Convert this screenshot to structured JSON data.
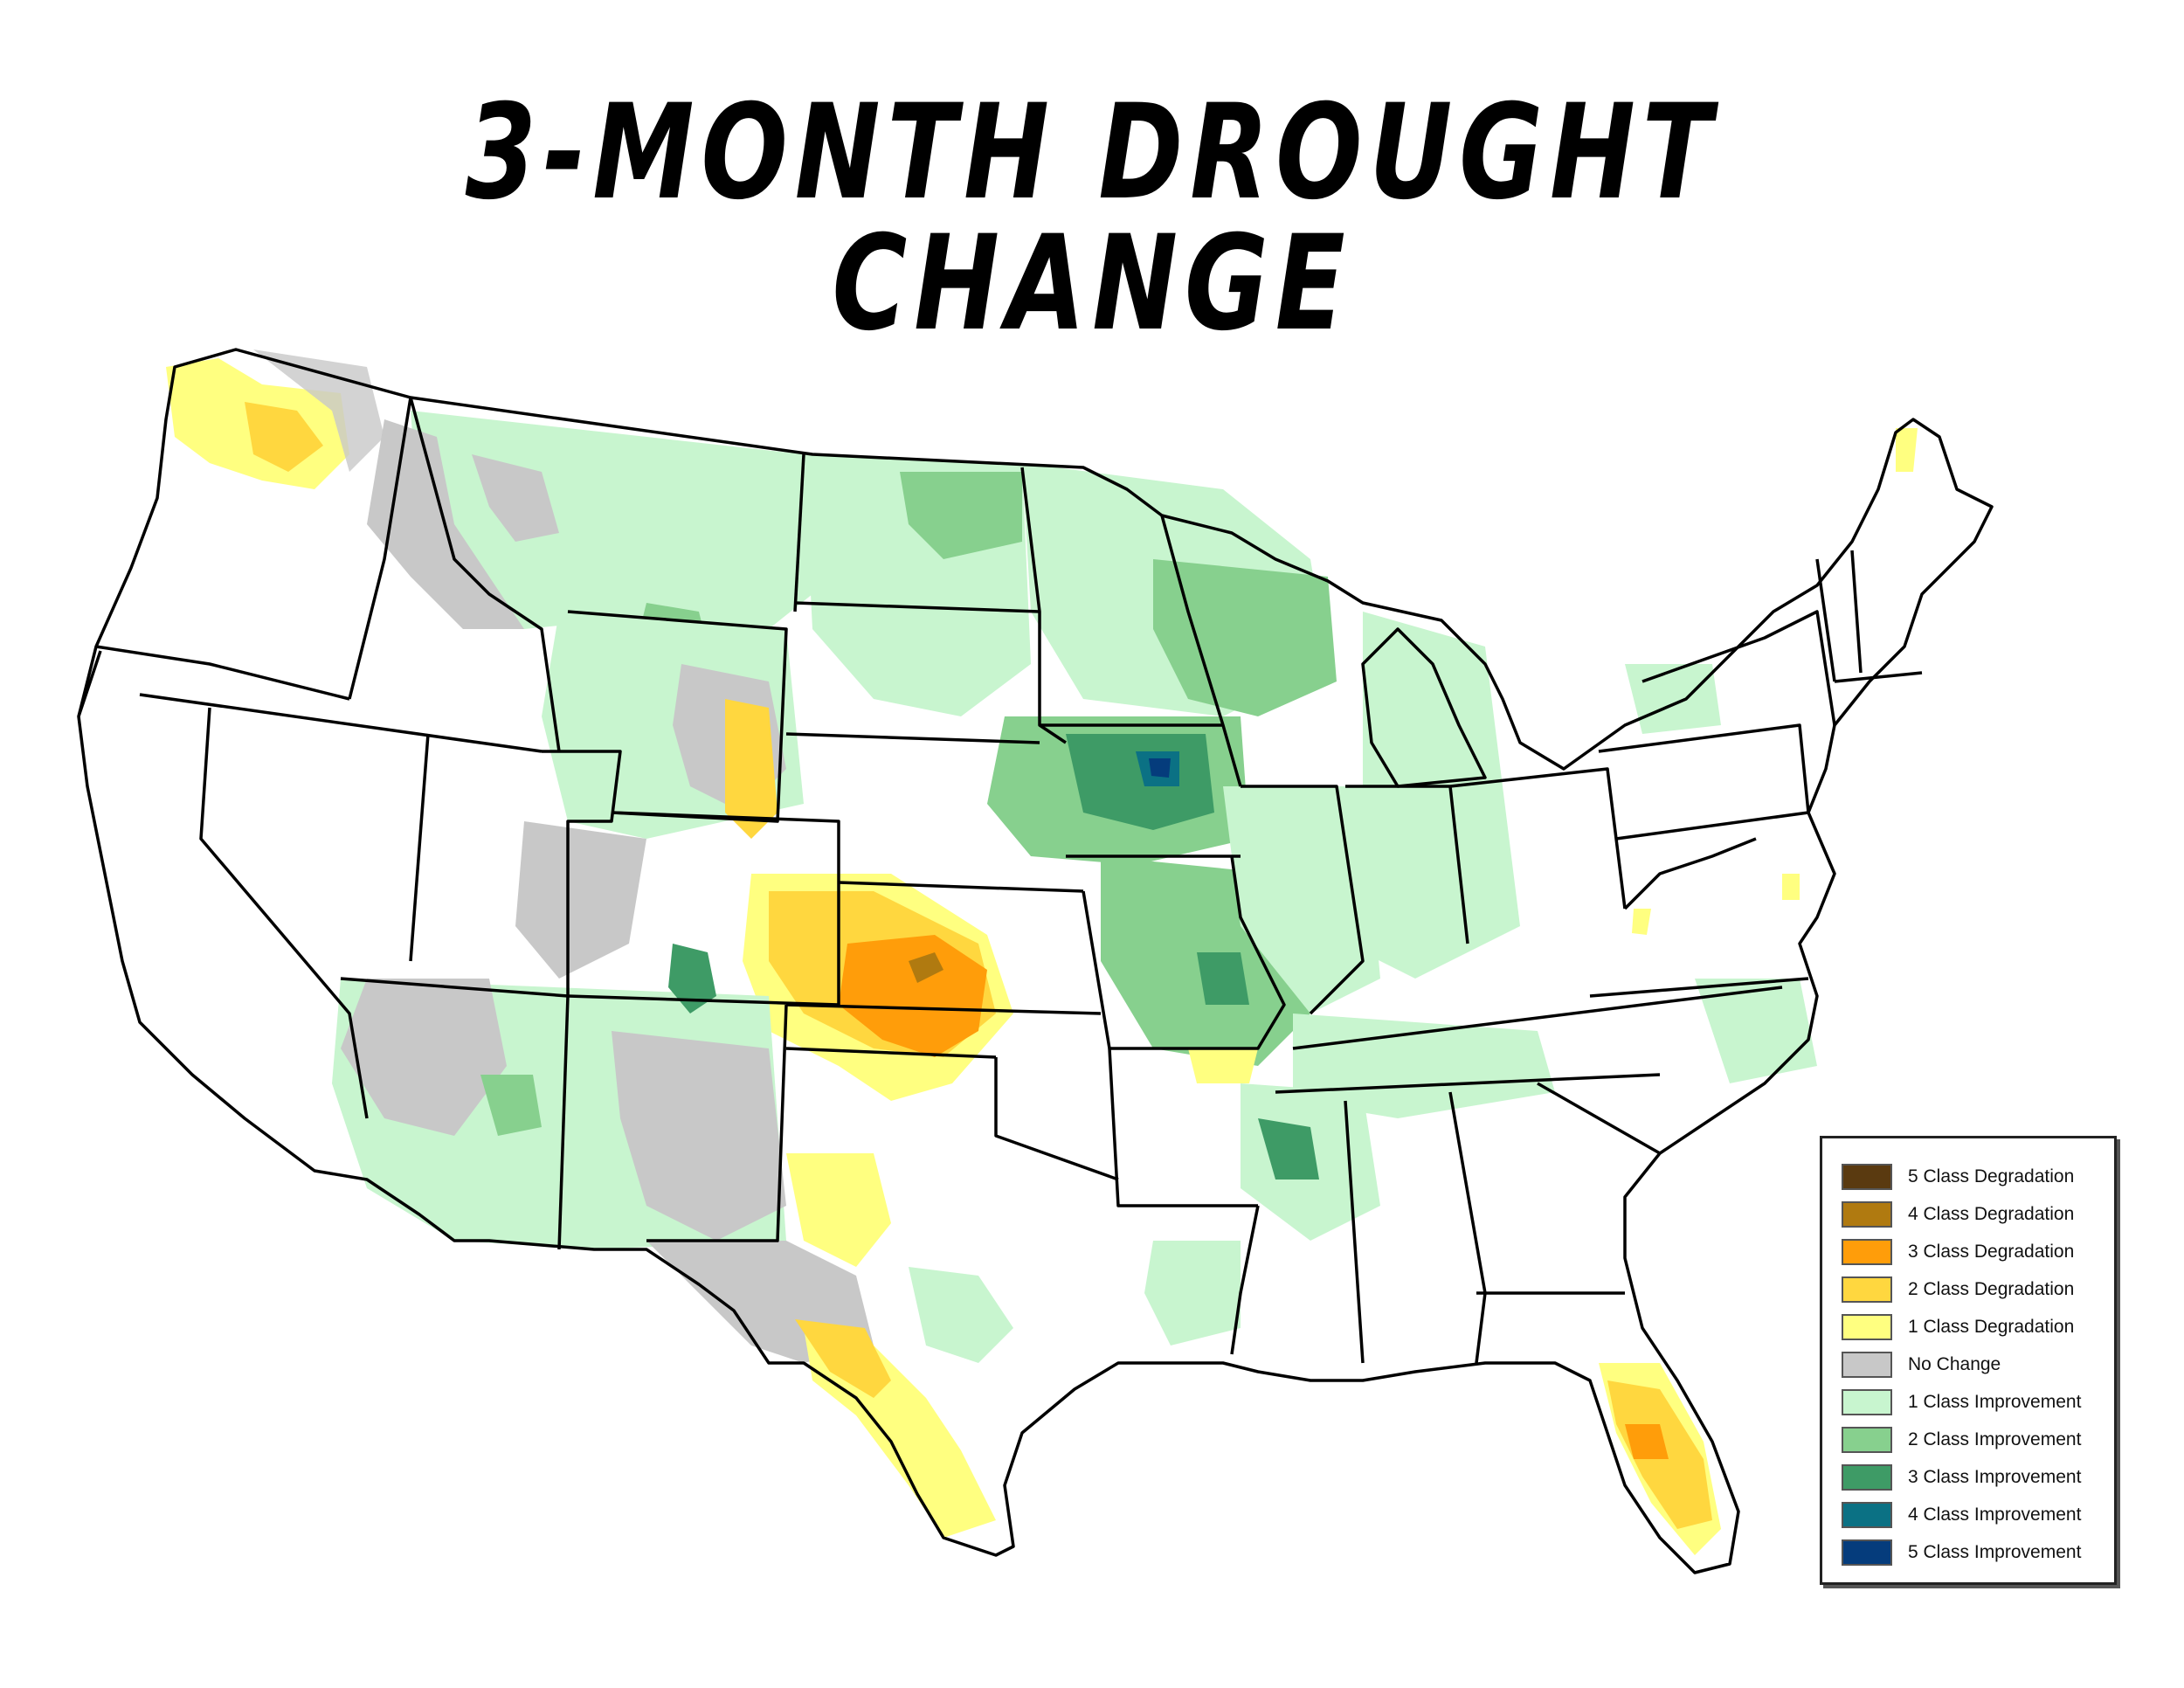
{
  "title": "3-MONTH DROUGHT CHANGE",
  "legend": {
    "items": [
      {
        "label": "5 Class Degradation",
        "color": "#5a3a10"
      },
      {
        "label": "4 Class Degradation",
        "color": "#b07a10"
      },
      {
        "label": "3 Class Degradation",
        "color": "#ff9d0a"
      },
      {
        "label": "2 Class Degradation",
        "color": "#ffd73f"
      },
      {
        "label": "1 Class Degradation",
        "color": "#ffff80"
      },
      {
        "label": "No Change",
        "color": "#c8c8c8"
      },
      {
        "label": "1 Class Improvement",
        "color": "#c8f5cf"
      },
      {
        "label": "2 Class Improvement",
        "color": "#87d08e"
      },
      {
        "label": "3 Class Improvement",
        "color": "#3e9b66"
      },
      {
        "label": "4 Class Improvement",
        "color": "#0b7184"
      },
      {
        "label": "5 Class Improvement",
        "color": "#053c7c"
      }
    ]
  }
}
